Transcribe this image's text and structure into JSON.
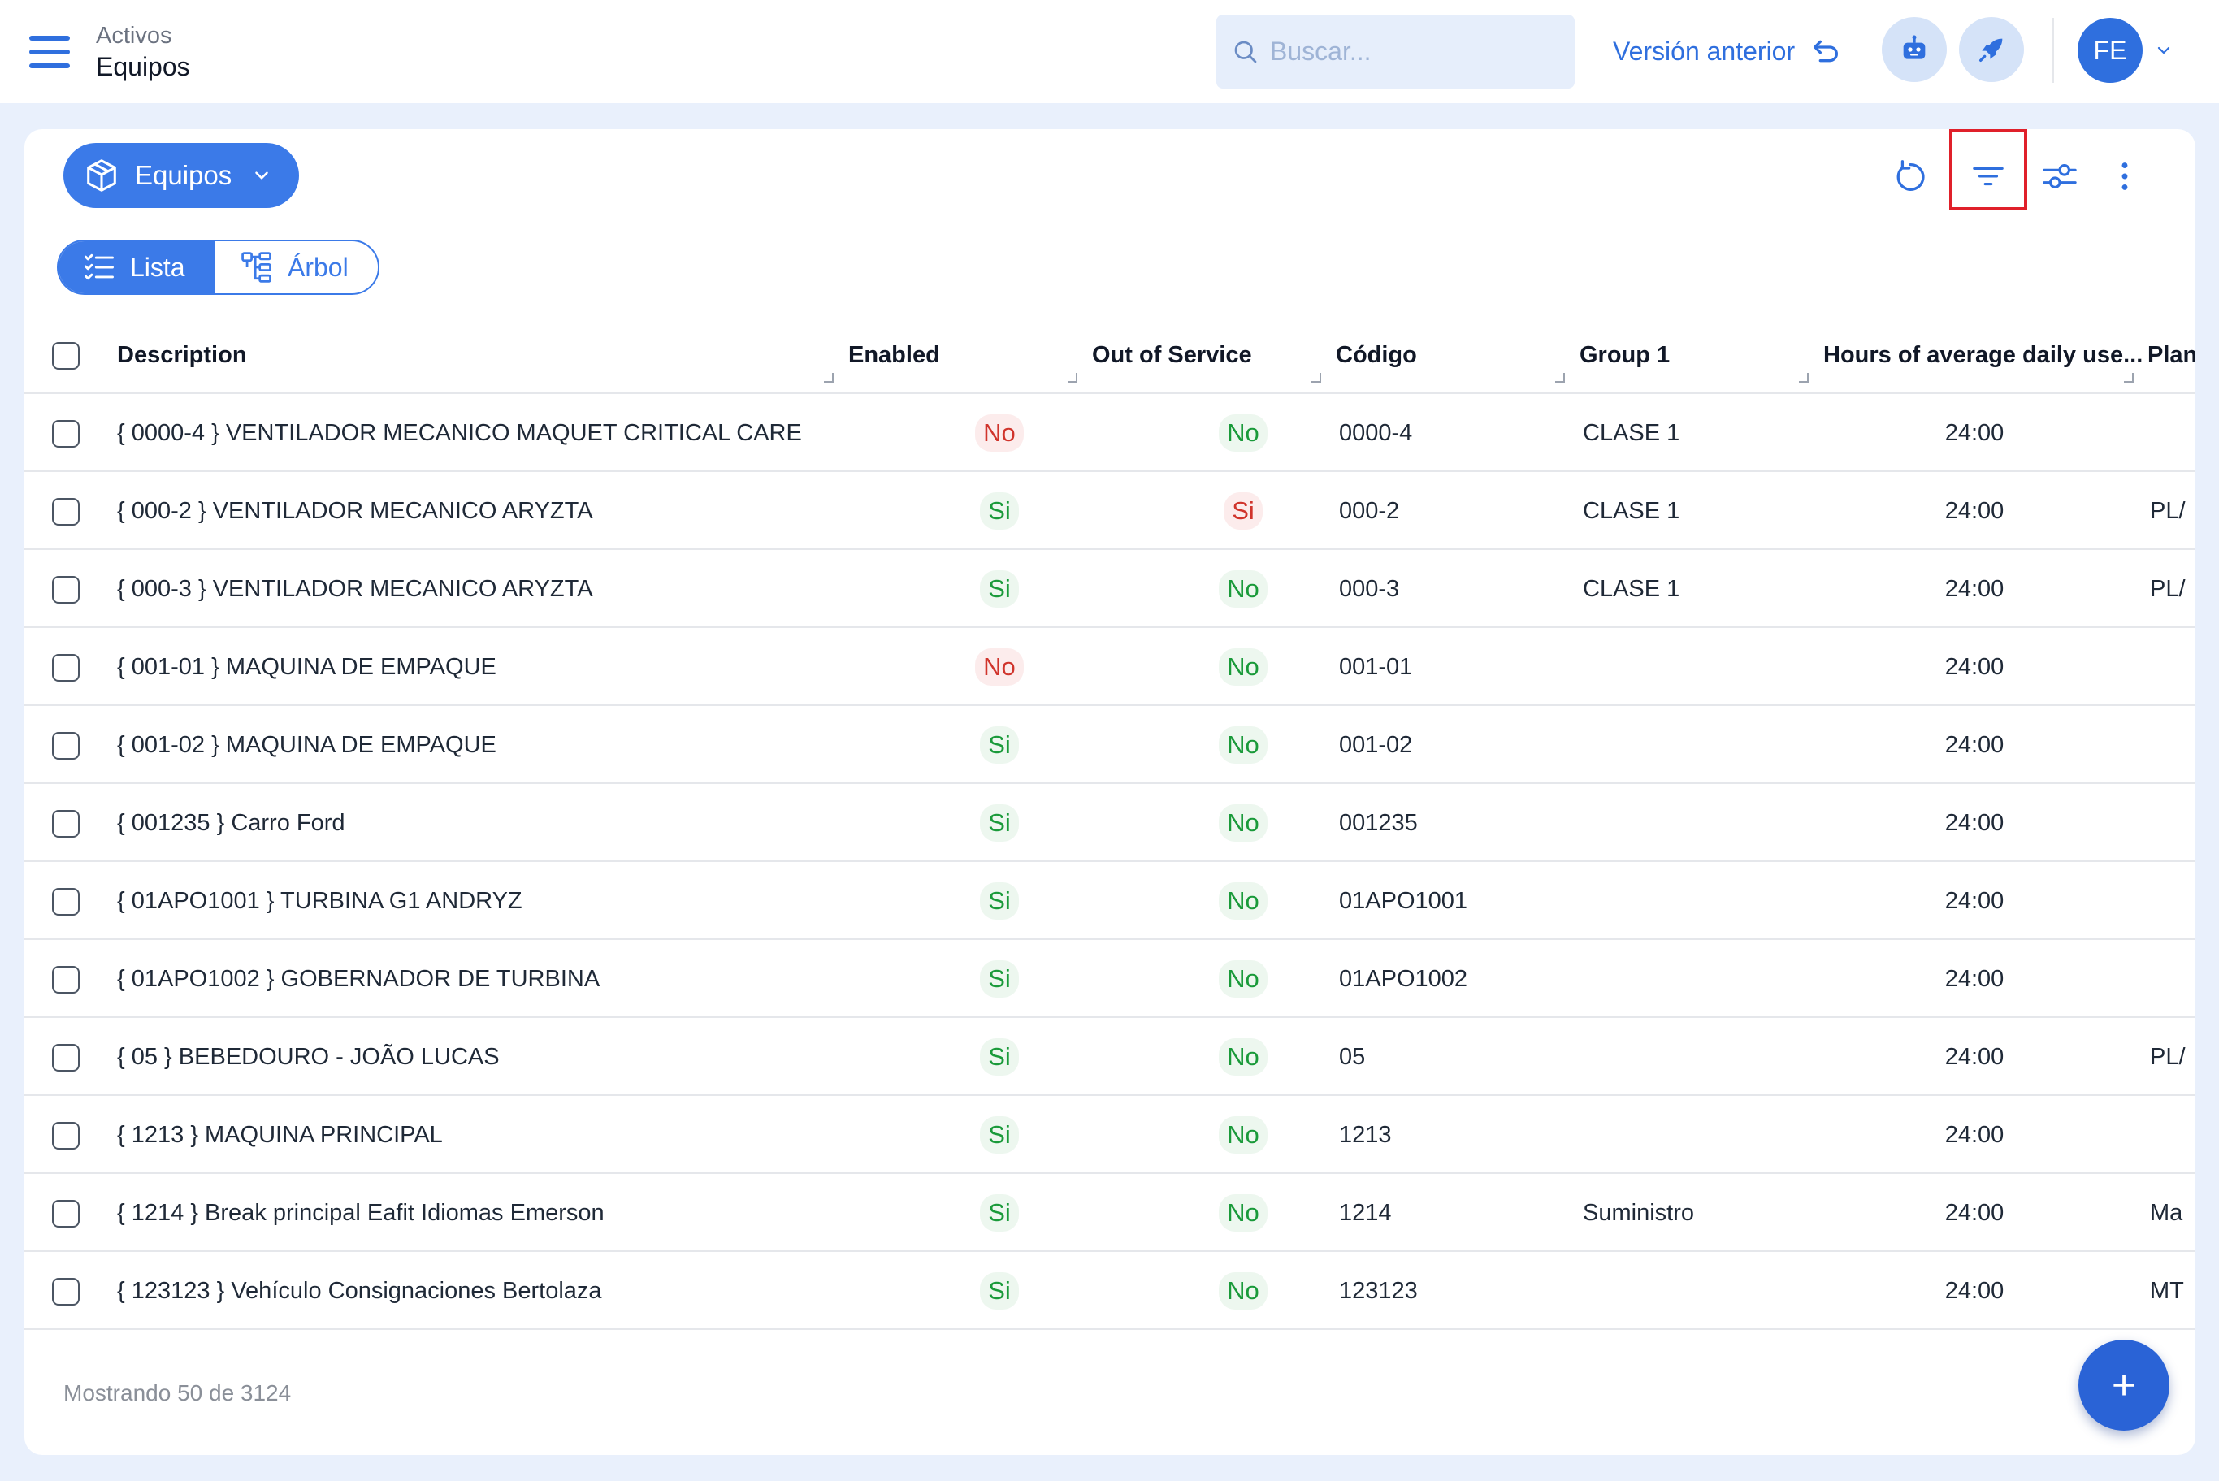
{
  "header": {
    "breadcrumb_parent": "Activos",
    "page_title": "Equipos",
    "search_placeholder": "Buscar...",
    "previous_version_label": "Versión anterior",
    "avatar_initials": "FE"
  },
  "toolbar": {
    "module_label": "Equipos",
    "view_list_label": "Lista",
    "view_tree_label": "Árbol"
  },
  "table": {
    "columns": [
      "Description",
      "Enabled",
      "Out of Service",
      "Código",
      "Group 1",
      "Hours of average daily use...",
      "Plan"
    ],
    "rows": [
      {
        "description": "{ 0000-4 } VENTILADOR MECANICO MAQUET CRITICAL CARE",
        "enabled": "No",
        "out_of_service": "No",
        "codigo": "0000-4",
        "group1": "CLASE 1",
        "hours": "24:00",
        "plan": ""
      },
      {
        "description": "{ 000-2 } VENTILADOR MECANICO ARYZTA",
        "enabled": "Si",
        "out_of_service": "Si",
        "codigo": "000-2",
        "group1": "CLASE 1",
        "hours": "24:00",
        "plan": "PL/"
      },
      {
        "description": "{ 000-3 } VENTILADOR MECANICO ARYZTA",
        "enabled": "Si",
        "out_of_service": "No",
        "codigo": "000-3",
        "group1": "CLASE 1",
        "hours": "24:00",
        "plan": "PL/"
      },
      {
        "description": "{ 001-01 } MAQUINA DE EMPAQUE",
        "enabled": "No",
        "out_of_service": "No",
        "codigo": "001-01",
        "group1": "",
        "hours": "24:00",
        "plan": ""
      },
      {
        "description": "{ 001-02 } MAQUINA DE EMPAQUE",
        "enabled": "Si",
        "out_of_service": "No",
        "codigo": "001-02",
        "group1": "",
        "hours": "24:00",
        "plan": ""
      },
      {
        "description": "{ 001235 } Carro Ford",
        "enabled": "Si",
        "out_of_service": "No",
        "codigo": "001235",
        "group1": "",
        "hours": "24:00",
        "plan": ""
      },
      {
        "description": "{ 01APO1001 } TURBINA G1 ANDRYZ",
        "enabled": "Si",
        "out_of_service": "No",
        "codigo": "01APO1001",
        "group1": "",
        "hours": "24:00",
        "plan": ""
      },
      {
        "description": "{ 01APO1002 } GOBERNADOR DE TURBINA",
        "enabled": "Si",
        "out_of_service": "No",
        "codigo": "01APO1002",
        "group1": "",
        "hours": "24:00",
        "plan": ""
      },
      {
        "description": "{ 05 } BEBEDOURO - JOÃO LUCAS",
        "enabled": "Si",
        "out_of_service": "No",
        "codigo": "05",
        "group1": "",
        "hours": "24:00",
        "plan": "PL/"
      },
      {
        "description": "{ 1213 } MAQUINA PRINCIPAL",
        "enabled": "Si",
        "out_of_service": "No",
        "codigo": "1213",
        "group1": "",
        "hours": "24:00",
        "plan": ""
      },
      {
        "description": "{ 1214 } Break principal Eafit Idiomas Emerson",
        "enabled": "Si",
        "out_of_service": "No",
        "codigo": "1214",
        "group1": "Suministro",
        "hours": "24:00",
        "plan": "Ma"
      },
      {
        "description": "{ 123123 } Vehículo Consignaciones Bertolaza",
        "enabled": "Si",
        "out_of_service": "No",
        "codigo": "123123",
        "group1": "",
        "hours": "24:00",
        "plan": "MT"
      }
    ]
  },
  "footer": {
    "showing_text": "Mostrando 50 de 3124",
    "fab_label": "+"
  },
  "icons": {
    "menu": "hamburger-icon",
    "search": "search-icon",
    "undo": "undo-arrow-icon",
    "bot": "robot-icon",
    "rocket": "rocket-icon",
    "module": "cube-icon",
    "refresh": "refresh-icon",
    "filter": "filter-icon",
    "settings": "sliders-icon",
    "more": "more-vertical-icon",
    "list": "list-icon",
    "tree": "tree-icon"
  },
  "colors": {
    "accent": "#3b7ae8",
    "pill_yes": "#1a9a3a",
    "pill_no": "#d0342c",
    "highlight": "#e0202a"
  }
}
